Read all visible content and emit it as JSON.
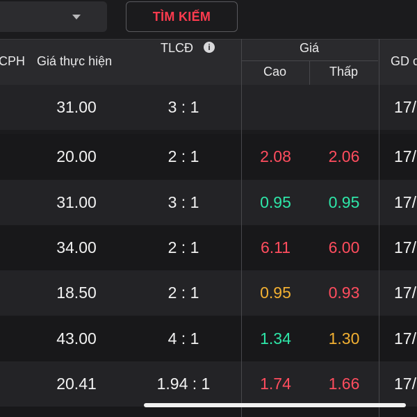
{
  "toolbar": {
    "search_label": "TÌM KIẾM"
  },
  "columns": {
    "cph_partial": "CPH",
    "strike_price": "Giá thực hiện",
    "ratio": "TLCĐ",
    "ratio_info_icon": "i",
    "price_group": "Giá",
    "price_high": "Cao",
    "price_low": "Thấp",
    "last_trade_partial": "GD c"
  },
  "rows": [
    {
      "strike": "31.00",
      "ratio": "3 : 1",
      "high": "",
      "low": "",
      "date": "17/"
    },
    {
      "strike": "20.00",
      "ratio": "2 : 1",
      "high": "2.08",
      "low": "2.06",
      "date": "17/"
    },
    {
      "strike": "31.00",
      "ratio": "3 : 1",
      "high": "0.95",
      "low": "0.95",
      "date": "17/"
    },
    {
      "strike": "34.00",
      "ratio": "2 : 1",
      "high": "6.11",
      "low": "6.00",
      "date": "17/"
    },
    {
      "strike": "18.50",
      "ratio": "2 : 1",
      "high": "0.95",
      "low": "0.93",
      "date": "17/"
    },
    {
      "strike": "43.00",
      "ratio": "4 : 1",
      "high": "1.34",
      "low": "1.30",
      "date": "17/"
    },
    {
      "strike": "20.41",
      "ratio": "1.94 : 1",
      "high": "1.74",
      "low": "1.66",
      "date": "17/"
    }
  ],
  "colors": {
    "up": "#ff4d5e",
    "green": "#2ee6a8",
    "ref": "#f2b032"
  }
}
